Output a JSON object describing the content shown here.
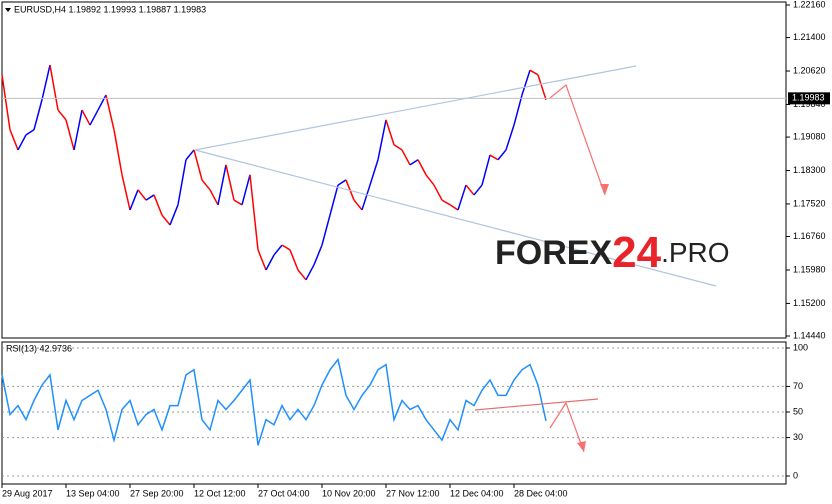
{
  "chart_data": [
    {
      "type": "line",
      "title": "EURUSD,H4 1.19892 1.19993 1.19887 1.19983",
      "up_color": "#0000ff",
      "down_color": "#ff0000",
      "values": [
        1.2053,
        1.1925,
        1.1878,
        1.1913,
        1.1925,
        1.1995,
        1.2076,
        1.1971,
        1.1948,
        1.1878,
        1.1971,
        1.1936,
        1.1971,
        1.2006,
        1.1925,
        1.182,
        1.1738,
        1.1785,
        1.1761,
        1.1773,
        1.1726,
        1.1703,
        1.175,
        1.1855,
        1.1878,
        1.1808,
        1.1785,
        1.175,
        1.1843,
        1.1761,
        1.175,
        1.182,
        1.1645,
        1.1598,
        1.1633,
        1.1656,
        1.1645,
        1.1598,
        1.1575,
        1.161,
        1.1656,
        1.1726,
        1.1796,
        1.1808,
        1.1761,
        1.1738,
        1.1796,
        1.1855,
        1.1948,
        1.189,
        1.1878,
        1.1843,
        1.1855,
        1.182,
        1.1796,
        1.1761,
        1.175,
        1.1738,
        1.1796,
        1.1773,
        1.1796,
        1.1866,
        1.1855,
        1.1878,
        1.1936,
        1.2006,
        1.2064,
        1.2053,
        1.1995
      ],
      "last_price": 1.19983,
      "ylim": [
        1.1444,
        1.2216
      ],
      "yticks": [
        {
          "value": 1.2216,
          "label": "1.22160"
        },
        {
          "value": 1.214,
          "label": "1.21400"
        },
        {
          "value": 1.2062,
          "label": "1.20620"
        },
        {
          "value": 1.1984,
          "label": "1.19840"
        },
        {
          "value": 1.1908,
          "label": "1.19080"
        },
        {
          "value": 1.183,
          "label": "1.18300"
        },
        {
          "value": 1.1752,
          "label": "1.17520"
        },
        {
          "value": 1.1676,
          "label": "1.16760"
        },
        {
          "value": 1.1598,
          "label": "1.15980"
        },
        {
          "value": 1.152,
          "label": "1.15200"
        },
        {
          "value": 1.1444,
          "label": "1.14440"
        }
      ],
      "watermark": [
        "FOREX",
        "24",
        ".PRO"
      ]
    },
    {
      "type": "line",
      "title": "RSI(13) 42.9736",
      "color": "#1e90ff",
      "categories": [
        "29 Aug 2017",
        null,
        null,
        null,
        null,
        null,
        null,
        null,
        "13 Sep 04:00",
        null,
        null,
        null,
        null,
        null,
        null,
        null,
        "27 Sep 20:00",
        null,
        null,
        null,
        null,
        null,
        null,
        null,
        "12 Oct 12:00",
        null,
        null,
        null,
        null,
        null,
        null,
        null,
        "27 Oct 04:00",
        null,
        null,
        null,
        null,
        null,
        null,
        null,
        "10 Nov 20:00",
        null,
        null,
        null,
        null,
        null,
        null,
        null,
        "27 Nov 12:00",
        null,
        null,
        null,
        null,
        null,
        null,
        null,
        "12 Dec 04:00",
        null,
        null,
        null,
        null,
        null,
        null,
        null,
        "28 Dec 04:00",
        null,
        null,
        null,
        null
      ],
      "values": [
        79,
        48,
        55,
        44,
        59,
        71,
        79,
        36,
        59,
        44,
        59,
        63,
        67,
        52,
        28,
        52,
        59,
        40,
        48,
        52,
        36,
        55,
        55,
        79,
        83,
        44,
        36,
        59,
        52,
        59,
        67,
        75,
        24,
        44,
        40,
        55,
        44,
        52,
        44,
        55,
        71,
        83,
        91,
        63,
        52,
        63,
        71,
        83,
        87,
        44,
        59,
        52,
        55,
        44,
        36,
        28,
        44,
        36,
        59,
        55,
        67,
        75,
        63,
        63,
        75,
        83,
        87,
        71,
        43
      ],
      "ylim": [
        0,
        100
      ],
      "yticks": [
        100,
        70,
        50,
        30,
        0
      ]
    }
  ]
}
